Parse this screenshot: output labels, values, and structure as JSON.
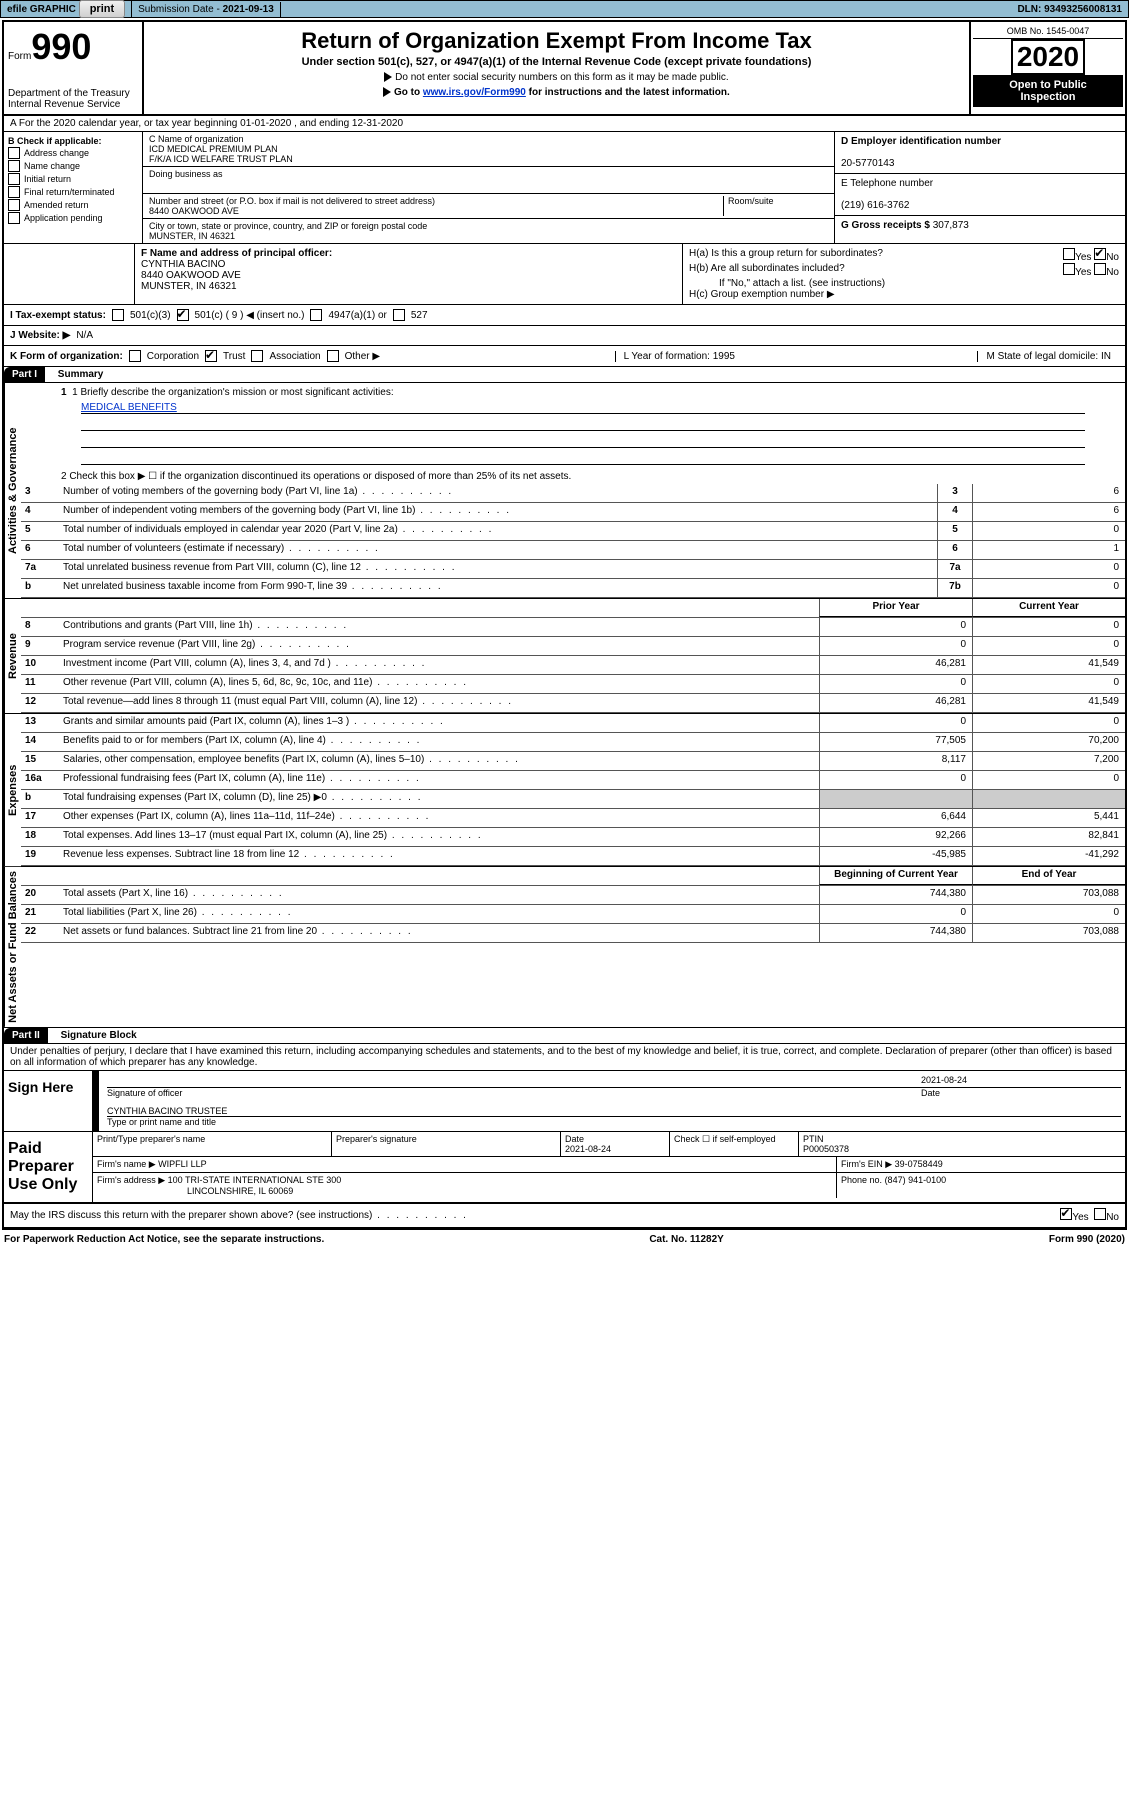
{
  "topbar": {
    "efile": "efile GRAPHIC",
    "print": "print",
    "subdate_label": "Submission Date - ",
    "subdate": "2021-09-13",
    "dln_label": "DLN: ",
    "dln": "93493256008131"
  },
  "header": {
    "form": "Form",
    "formno": "990",
    "dept": "Department of the Treasury",
    "irs": "Internal Revenue Service",
    "title": "Return of Organization Exempt From Income Tax",
    "sub1": "Under section 501(c), 527, or 4947(a)(1) of the Internal Revenue Code (except private foundations)",
    "sub2": "Do not enter social security numbers on this form as it may be made public.",
    "sub3_a": "Go to ",
    "sub3_link": "www.irs.gov/Form990",
    "sub3_b": " for instructions and the latest information.",
    "omb": "OMB No. 1545-0047",
    "year": "2020",
    "open": "Open to Public",
    "inspection": "Inspection"
  },
  "sectionA": {
    "a_line": "A For the 2020 calendar year, or tax year beginning 01-01-2020    , and ending 12-31-2020",
    "b_label": "B Check if applicable:",
    "b_items": [
      "Address change",
      "Name change",
      "Initial return",
      "Final return/terminated",
      "Amended return",
      "Application pending"
    ],
    "c_label": "C Name of organization",
    "c_name1": "ICD MEDICAL PREMIUM PLAN",
    "c_name2": "F/K/A ICD WELFARE TRUST PLAN",
    "dba": "Doing business as",
    "street_label": "Number and street (or P.O. box if mail is not delivered to street address)",
    "room": "Room/suite",
    "street": "8440 OAKWOOD AVE",
    "city_label": "City or town, state or province, country, and ZIP or foreign postal code",
    "city": "MUNSTER, IN  46321",
    "d_label": "D Employer identification number",
    "d_val": "20-5770143",
    "e_label": "E Telephone number",
    "e_val": "(219) 616-3762",
    "g_label": "G Gross receipts $ ",
    "g_val": "307,873",
    "f_label": "F  Name and address of principal officer:",
    "f_name": "CYNTHIA BACINO",
    "f_addr1": "8440 OAKWOOD AVE",
    "f_addr2": "MUNSTER, IN  46321",
    "h_a": "H(a)  Is this a group return for subordinates?",
    "h_b": "H(b)  Are all subordinates included?",
    "h_b_note": "If \"No,\" attach a list. (see instructions)",
    "h_c": "H(c)  Group exemption number ▶",
    "yes": "Yes",
    "no": "No"
  },
  "rowI": {
    "label": "I  Tax-exempt status:",
    "opt1": "501(c)(3)",
    "opt2": "501(c) ( 9 ) ◀ (insert no.)",
    "opt3": "4947(a)(1) or",
    "opt4": "527"
  },
  "rowJ": {
    "label": "J  Website: ▶",
    "val": "N/A"
  },
  "rowK": {
    "label": "K Form of organization:",
    "opts": [
      "Corporation",
      "Trust",
      "Association",
      "Other ▶"
    ],
    "l": "L Year of formation: 1995",
    "m": "M State of legal domicile: IN"
  },
  "part1": {
    "label": "Part I",
    "title": "Summary",
    "q1": "1  Briefly describe the organization's mission or most significant activities:",
    "mission": "MEDICAL BENEFITS",
    "q2": "2   Check this box ▶ ☐  if the organization discontinued its operations or disposed of more than 25% of its net assets.",
    "side_ag": "Activities & Governance",
    "side_rev": "Revenue",
    "side_exp": "Expenses",
    "side_na": "Net Assets or Fund Balances",
    "lines_agov": [
      {
        "n": "3",
        "d": "Number of voting members of the governing body (Part VI, line 1a)",
        "box": "3",
        "v": "6"
      },
      {
        "n": "4",
        "d": "Number of independent voting members of the governing body (Part VI, line 1b)",
        "box": "4",
        "v": "6"
      },
      {
        "n": "5",
        "d": "Total number of individuals employed in calendar year 2020 (Part V, line 2a)",
        "box": "5",
        "v": "0"
      },
      {
        "n": "6",
        "d": "Total number of volunteers (estimate if necessary)",
        "box": "6",
        "v": "1"
      },
      {
        "n": "7a",
        "d": "Total unrelated business revenue from Part VIII, column (C), line 12",
        "box": "7a",
        "v": "0"
      },
      {
        "n": "b",
        "d": "Net unrelated business taxable income from Form 990-T, line 39",
        "box": "7b",
        "v": "0"
      }
    ],
    "py": "Prior Year",
    "cy": "Current Year",
    "lines_rev": [
      {
        "n": "8",
        "d": "Contributions and grants (Part VIII, line 1h)",
        "py": "0",
        "cy": "0"
      },
      {
        "n": "9",
        "d": "Program service revenue (Part VIII, line 2g)",
        "py": "0",
        "cy": "0"
      },
      {
        "n": "10",
        "d": "Investment income (Part VIII, column (A), lines 3, 4, and 7d )",
        "py": "46,281",
        "cy": "41,549"
      },
      {
        "n": "11",
        "d": "Other revenue (Part VIII, column (A), lines 5, 6d, 8c, 9c, 10c, and 11e)",
        "py": "0",
        "cy": "0"
      },
      {
        "n": "12",
        "d": "Total revenue—add lines 8 through 11 (must equal Part VIII, column (A), line 12)",
        "py": "46,281",
        "cy": "41,549"
      }
    ],
    "lines_exp": [
      {
        "n": "13",
        "d": "Grants and similar amounts paid (Part IX, column (A), lines 1–3 )",
        "py": "0",
        "cy": "0"
      },
      {
        "n": "14",
        "d": "Benefits paid to or for members (Part IX, column (A), line 4)",
        "py": "77,505",
        "cy": "70,200"
      },
      {
        "n": "15",
        "d": "Salaries, other compensation, employee benefits (Part IX, column (A), lines 5–10)",
        "py": "8,117",
        "cy": "7,200"
      },
      {
        "n": "16a",
        "d": "Professional fundraising fees (Part IX, column (A), line 11e)",
        "py": "0",
        "cy": "0"
      },
      {
        "n": "b",
        "d": "Total fundraising expenses (Part IX, column (D), line 25) ▶0",
        "py": "",
        "cy": ""
      },
      {
        "n": "17",
        "d": "Other expenses (Part IX, column (A), lines 11a–11d, 11f–24e)",
        "py": "6,644",
        "cy": "5,441"
      },
      {
        "n": "18",
        "d": "Total expenses. Add lines 13–17 (must equal Part IX, column (A), line 25)",
        "py": "92,266",
        "cy": "82,841"
      },
      {
        "n": "19",
        "d": "Revenue less expenses. Subtract line 18 from line 12",
        "py": "-45,985",
        "cy": "-41,292"
      }
    ],
    "boy": "Beginning of Current Year",
    "eoy": "End of Year",
    "lines_na": [
      {
        "n": "20",
        "d": "Total assets (Part X, line 16)",
        "py": "744,380",
        "cy": "703,088"
      },
      {
        "n": "21",
        "d": "Total liabilities (Part X, line 26)",
        "py": "0",
        "cy": "0"
      },
      {
        "n": "22",
        "d": "Net assets or fund balances. Subtract line 21 from line 20",
        "py": "744,380",
        "cy": "703,088"
      }
    ]
  },
  "part2": {
    "label": "Part II",
    "title": "Signature Block",
    "decl": "Under penalties of perjury, I declare that I have examined this return, including accompanying schedules and statements, and to the best of my knowledge and belief, it is true, correct, and complete. Declaration of preparer (other than officer) is based on all information of which preparer has any knowledge.",
    "sign_here": "Sign Here",
    "sig_officer": "Signature of officer",
    "sig_date": "2021-08-24",
    "date": "Date",
    "sig_name": "CYNTHIA BACINO  TRUSTEE",
    "type_name": "Type or print name and title",
    "paid": "Paid Preparer Use Only",
    "prep_name_label": "Print/Type preparer's name",
    "prep_sig_label": "Preparer's signature",
    "prep_date": "2021-08-24",
    "check_self": "Check ☐ if self-employed",
    "ptin_label": "PTIN",
    "ptin": "P00050378",
    "firm_name_label": "Firm's name  ▶",
    "firm_name": "WIPFLI LLP",
    "firm_ein_label": "Firm's EIN ▶",
    "firm_ein": "39-0758449",
    "firm_addr_label": "Firm's address ▶",
    "firm_addr1": "100 TRI-STATE INTERNATIONAL STE 300",
    "firm_addr2": "LINCOLNSHIRE, IL  60069",
    "phone_label": "Phone no.",
    "phone": "(847) 941-0100",
    "discuss": "May the IRS discuss this return with the preparer shown above? (see instructions)"
  },
  "footer": {
    "left": "For Paperwork Reduction Act Notice, see the separate instructions.",
    "center": "Cat. No. 11282Y",
    "right": "Form 990 (2020)"
  }
}
